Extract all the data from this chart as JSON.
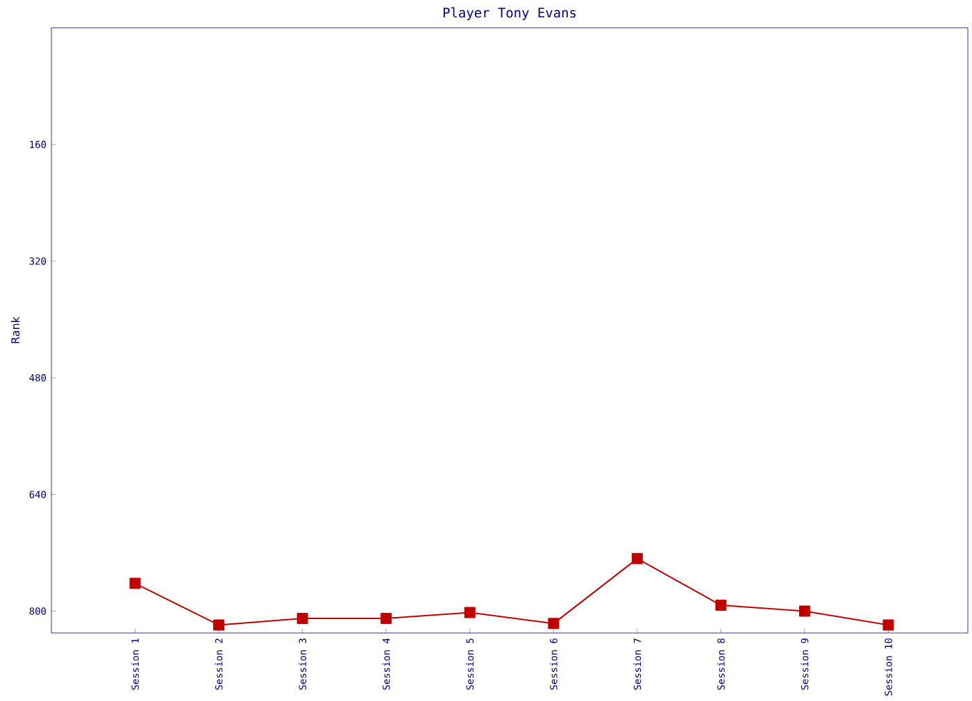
{
  "chart_data": {
    "type": "line",
    "title": "Player Tony Evans",
    "ylabel": "Rank",
    "categories": [
      "Session 1",
      "Session 2",
      "Session 3",
      "Session 4",
      "Session 5",
      "Session 6",
      "Session 7",
      "Session 8",
      "Session 9",
      "Session 10"
    ],
    "series": [
      {
        "color": "#c00000",
        "values": [
          762,
          819,
          810,
          810,
          802,
          817,
          728,
          792,
          800,
          819
        ]
      }
    ],
    "ylim": [
      830,
      0
    ],
    "yticks": [
      160,
      320,
      480,
      640,
      800
    ],
    "marker": "square",
    "line_style": "solid"
  }
}
